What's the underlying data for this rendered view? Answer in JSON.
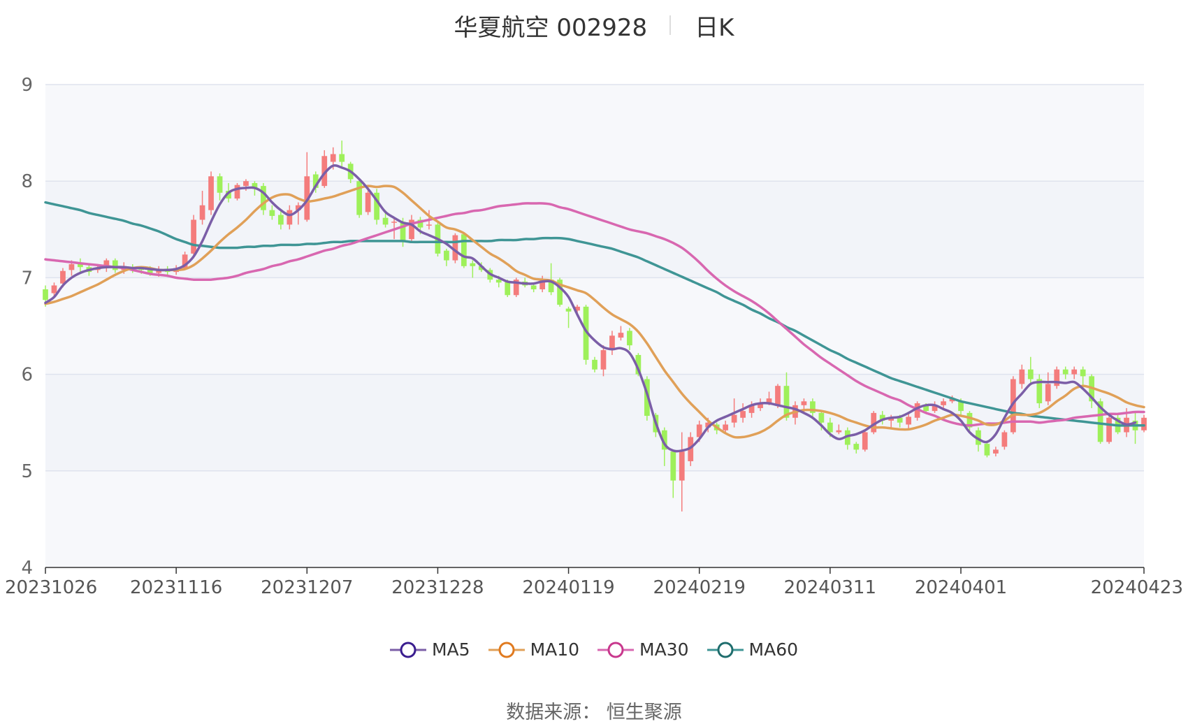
{
  "title": {
    "name": "华夏航空 002928",
    "period": "日K"
  },
  "source": {
    "label": "数据来源：",
    "value": "恒生聚源"
  },
  "colors": {
    "up": "#f47c7c",
    "down": "#9ef05a",
    "ma5": "#7b5ea7",
    "ma10": "#e0a058",
    "ma30": "#d867b0",
    "ma60": "#3f9595",
    "ma5_ring": "#3a1d8f",
    "ma10_ring": "#e07a1f",
    "ma30_ring": "#c8388d",
    "ma60_ring": "#1f6d6d",
    "band": "#f5f6fa",
    "grid": "#dfe3ee"
  },
  "chart_data": {
    "type": "candlestick",
    "title": "华夏航空 002928",
    "subtitle": "日K",
    "ylim": [
      4,
      9
    ],
    "yticks": [
      4,
      5,
      6,
      7,
      8,
      9
    ],
    "xticks": [
      "20231026",
      "20231116",
      "20231207",
      "20231228",
      "20240119",
      "20240219",
      "20240311",
      "20240401",
      "20240423"
    ],
    "legend": [
      "MA5",
      "MA10",
      "MA30",
      "MA60"
    ],
    "legend_position": "bottom-center",
    "candles": [
      [
        6.88,
        6.77,
        6.92,
        6.7
      ],
      [
        6.84,
        6.92,
        6.95,
        6.8
      ],
      [
        6.94,
        7.07,
        7.1,
        6.9
      ],
      [
        7.08,
        7.14,
        7.18,
        7.02
      ],
      [
        7.15,
        7.11,
        7.2,
        7.05
      ],
      [
        7.11,
        7.06,
        7.14,
        7.02
      ],
      [
        7.08,
        7.1,
        7.14,
        7.05
      ],
      [
        7.1,
        7.18,
        7.2,
        7.06
      ],
      [
        7.18,
        7.08,
        7.2,
        7.05
      ],
      [
        7.08,
        7.12,
        7.16,
        7.04
      ],
      [
        7.1,
        7.09,
        7.14,
        7.05
      ],
      [
        7.1,
        7.08,
        7.12,
        7.04
      ],
      [
        7.09,
        7.05,
        7.12,
        7.02
      ],
      [
        7.05,
        7.08,
        7.12,
        7.01
      ],
      [
        7.09,
        7.06,
        7.12,
        7.03
      ],
      [
        7.06,
        7.1,
        7.13,
        7.03
      ],
      [
        7.1,
        7.24,
        7.27,
        7.08
      ],
      [
        7.25,
        7.6,
        7.65,
        7.2
      ],
      [
        7.6,
        7.75,
        7.9,
        7.55
      ],
      [
        7.7,
        8.05,
        8.1,
        7.65
      ],
      [
        8.05,
        7.88,
        8.08,
        7.8
      ],
      [
        7.9,
        7.82,
        7.98,
        7.78
      ],
      [
        7.82,
        7.96,
        7.98,
        7.8
      ],
      [
        7.95,
        8.0,
        8.02,
        7.9
      ],
      [
        7.98,
        7.92,
        8.0,
        7.85
      ],
      [
        7.95,
        7.7,
        7.98,
        7.65
      ],
      [
        7.7,
        7.64,
        7.75,
        7.6
      ],
      [
        7.65,
        7.55,
        7.7,
        7.5
      ],
      [
        7.55,
        7.7,
        7.75,
        7.5
      ],
      [
        7.7,
        7.75,
        7.78,
        7.55
      ],
      [
        7.6,
        8.05,
        8.3,
        7.58
      ],
      [
        8.07,
        7.93,
        8.1,
        7.88
      ],
      [
        7.95,
        8.26,
        8.32,
        7.93
      ],
      [
        8.2,
        8.28,
        8.35,
        8.12
      ],
      [
        8.28,
        8.2,
        8.42,
        8.15
      ],
      [
        8.18,
        8.02,
        8.2,
        7.98
      ],
      [
        8.0,
        7.65,
        8.02,
        7.62
      ],
      [
        7.68,
        7.88,
        7.95,
        7.65
      ],
      [
        7.88,
        7.6,
        7.92,
        7.55
      ],
      [
        7.62,
        7.55,
        7.7,
        7.52
      ],
      [
        7.58,
        7.58,
        7.62,
        7.4
      ],
      [
        7.58,
        7.38,
        7.62,
        7.32
      ],
      [
        7.4,
        7.6,
        7.65,
        7.38
      ],
      [
        7.6,
        7.52,
        7.63,
        7.45
      ],
      [
        7.55,
        7.55,
        7.7,
        7.5
      ],
      [
        7.55,
        7.25,
        7.58,
        7.22
      ],
      [
        7.28,
        7.18,
        7.3,
        7.12
      ],
      [
        7.18,
        7.44,
        7.46,
        7.15
      ],
      [
        7.45,
        7.12,
        7.47,
        7.1
      ],
      [
        7.15,
        7.12,
        7.18,
        7.0
      ],
      [
        7.12,
        7.08,
        7.16,
        7.06
      ],
      [
        7.08,
        6.98,
        7.1,
        6.95
      ],
      [
        6.98,
        6.95,
        7.02,
        6.9
      ],
      [
        6.96,
        6.82,
        6.98,
        6.8
      ],
      [
        6.82,
        6.98,
        7.0,
        6.8
      ],
      [
        6.96,
        6.92,
        7.0,
        6.9
      ],
      [
        6.92,
        6.88,
        6.95,
        6.85
      ],
      [
        6.88,
        6.98,
        7.02,
        6.85
      ],
      [
        6.98,
        6.85,
        7.15,
        6.82
      ],
      [
        6.98,
        6.72,
        7.0,
        6.7
      ],
      [
        6.68,
        6.65,
        6.7,
        6.48
      ],
      [
        6.66,
        6.7,
        6.72,
        6.6
      ],
      [
        6.7,
        6.15,
        6.72,
        6.1
      ],
      [
        6.15,
        6.05,
        6.18,
        6.02
      ],
      [
        6.05,
        6.25,
        6.3,
        5.98
      ],
      [
        6.25,
        6.4,
        6.45,
        6.2
      ],
      [
        6.38,
        6.43,
        6.5,
        6.35
      ],
      [
        6.45,
        6.3,
        6.48,
        6.25
      ],
      [
        6.2,
        6.0,
        6.22,
        5.98
      ],
      [
        5.95,
        5.57,
        5.98,
        5.52
      ],
      [
        5.58,
        5.4,
        5.6,
        5.35
      ],
      [
        5.42,
        5.22,
        5.45,
        5.05
      ],
      [
        5.2,
        4.9,
        5.22,
        4.72
      ],
      [
        4.9,
        5.2,
        5.4,
        4.58
      ],
      [
        5.1,
        5.35,
        5.4,
        5.05
      ],
      [
        5.35,
        5.48,
        5.52,
        5.3
      ],
      [
        5.45,
        5.5,
        5.55,
        5.4
      ],
      [
        5.48,
        5.42,
        5.5,
        5.38
      ],
      [
        5.42,
        5.48,
        5.52,
        5.4
      ],
      [
        5.5,
        5.58,
        5.75,
        5.45
      ],
      [
        5.55,
        5.62,
        5.7,
        5.5
      ],
      [
        5.6,
        5.68,
        5.72,
        5.55
      ],
      [
        5.65,
        5.7,
        5.75,
        5.62
      ],
      [
        5.7,
        5.75,
        5.82,
        5.68
      ],
      [
        5.68,
        5.88,
        5.9,
        5.65
      ],
      [
        5.88,
        5.55,
        6.02,
        5.52
      ],
      [
        5.55,
        5.68,
        5.72,
        5.48
      ],
      [
        5.68,
        5.72,
        5.75,
        5.6
      ],
      [
        5.72,
        5.6,
        5.75,
        5.55
      ],
      [
        5.6,
        5.5,
        5.62,
        5.42
      ],
      [
        5.5,
        5.4,
        5.55,
        5.35
      ],
      [
        5.4,
        5.42,
        5.48,
        5.38
      ],
      [
        5.42,
        5.27,
        5.45,
        5.22
      ],
      [
        5.28,
        5.22,
        5.3,
        5.18
      ],
      [
        5.22,
        5.4,
        5.42,
        5.2
      ],
      [
        5.4,
        5.6,
        5.62,
        5.38
      ],
      [
        5.58,
        5.52,
        5.62,
        5.48
      ],
      [
        5.52,
        5.55,
        5.58,
        5.45
      ],
      [
        5.55,
        5.5,
        5.58,
        5.45
      ],
      [
        5.48,
        5.56,
        5.6,
        5.44
      ],
      [
        5.55,
        5.7,
        5.72,
        5.52
      ],
      [
        5.68,
        5.62,
        5.7,
        5.6
      ],
      [
        5.62,
        5.68,
        5.72,
        5.6
      ],
      [
        5.68,
        5.72,
        5.75,
        5.65
      ],
      [
        5.72,
        5.75,
        5.78,
        5.7
      ],
      [
        5.72,
        5.62,
        5.75,
        5.58
      ],
      [
        5.6,
        5.45,
        5.62,
        5.4
      ],
      [
        5.42,
        5.27,
        5.45,
        5.2
      ],
      [
        5.28,
        5.16,
        5.3,
        5.14
      ],
      [
        5.18,
        5.22,
        5.25,
        5.15
      ],
      [
        5.25,
        5.4,
        5.42,
        5.22
      ],
      [
        5.4,
        5.95,
        5.98,
        5.38
      ],
      [
        5.9,
        6.05,
        6.1,
        5.85
      ],
      [
        6.05,
        5.95,
        6.18,
        5.9
      ],
      [
        5.95,
        5.7,
        6.0,
        5.65
      ],
      [
        5.72,
        5.9,
        6.02,
        5.68
      ],
      [
        5.88,
        6.05,
        6.08,
        5.85
      ],
      [
        6.05,
        6.0,
        6.08,
        5.95
      ],
      [
        6.0,
        6.05,
        6.08,
        5.95
      ],
      [
        6.05,
        5.98,
        6.08,
        5.85
      ],
      [
        5.98,
        5.72,
        6.0,
        5.65
      ],
      [
        5.72,
        5.3,
        5.75,
        5.28
      ],
      [
        5.3,
        5.55,
        5.6,
        5.28
      ],
      [
        5.55,
        5.4,
        5.58,
        5.38
      ],
      [
        5.4,
        5.55,
        5.65,
        5.35
      ],
      [
        5.52,
        5.42,
        5.6,
        5.28
      ],
      [
        5.42,
        5.55,
        5.58,
        5.4
      ]
    ],
    "ma5": [
      6.74,
      6.8,
      6.92,
      7.0,
      7.05,
      7.08,
      7.1,
      7.11,
      7.11,
      7.11,
      7.1,
      7.1,
      7.09,
      7.08,
      7.08,
      7.09,
      7.13,
      7.22,
      7.38,
      7.58,
      7.76,
      7.88,
      7.92,
      7.93,
      7.93,
      7.88,
      7.78,
      7.7,
      7.65,
      7.7,
      7.8,
      7.95,
      8.08,
      8.16,
      8.14,
      8.1,
      8.02,
      7.92,
      7.8,
      7.68,
      7.62,
      7.57,
      7.55,
      7.48,
      7.44,
      7.4,
      7.35,
      7.28,
      7.22,
      7.2,
      7.12,
      7.04,
      7.0,
      6.96,
      6.95,
      6.94,
      6.94,
      6.96,
      6.96,
      6.9,
      6.8,
      6.62,
      6.45,
      6.35,
      6.28,
      6.26,
      6.27,
      6.22,
      6.05,
      5.8,
      5.5,
      5.28,
      5.21,
      5.21,
      5.24,
      5.33,
      5.45,
      5.52,
      5.56,
      5.6,
      5.64,
      5.68,
      5.7,
      5.7,
      5.68,
      5.66,
      5.64,
      5.6,
      5.55,
      5.47,
      5.38,
      5.33,
      5.36,
      5.38,
      5.42,
      5.48,
      5.53,
      5.55,
      5.56,
      5.6,
      5.65,
      5.68,
      5.68,
      5.64,
      5.6,
      5.52,
      5.4,
      5.33,
      5.3,
      5.38,
      5.55,
      5.7,
      5.8,
      5.9,
      5.92,
      5.92,
      5.92,
      5.91,
      5.92,
      5.85,
      5.76,
      5.66,
      5.58,
      5.52,
      5.48,
      5.5
    ],
    "ma10": [
      6.73,
      6.75,
      6.78,
      6.81,
      6.85,
      6.89,
      6.93,
      6.98,
      7.03,
      7.07,
      7.1,
      7.11,
      7.1,
      7.08,
      7.08,
      7.08,
      7.09,
      7.13,
      7.2,
      7.28,
      7.37,
      7.45,
      7.52,
      7.6,
      7.69,
      7.77,
      7.83,
      7.86,
      7.86,
      7.82,
      7.79,
      7.8,
      7.82,
      7.84,
      7.87,
      7.9,
      7.93,
      7.95,
      7.94,
      7.95,
      7.94,
      7.88,
      7.8,
      7.72,
      7.64,
      7.58,
      7.52,
      7.5,
      7.46,
      7.39,
      7.32,
      7.25,
      7.2,
      7.14,
      7.07,
      7.03,
      6.99,
      6.98,
      6.97,
      6.93,
      6.9,
      6.87,
      6.84,
      6.77,
      6.69,
      6.62,
      6.57,
      6.52,
      6.44,
      6.32,
      6.18,
      6.04,
      5.92,
      5.8,
      5.7,
      5.61,
      5.52,
      5.45,
      5.39,
      5.35,
      5.35,
      5.37,
      5.4,
      5.45,
      5.52,
      5.58,
      5.61,
      5.63,
      5.63,
      5.62,
      5.6,
      5.57,
      5.53,
      5.5,
      5.47,
      5.45,
      5.45,
      5.44,
      5.43,
      5.43,
      5.45,
      5.48,
      5.52,
      5.55,
      5.58,
      5.57,
      5.55,
      5.52,
      5.48,
      5.48,
      5.52,
      5.58,
      5.58,
      5.58,
      5.6,
      5.65,
      5.72,
      5.78,
      5.85,
      5.88,
      5.86,
      5.83,
      5.8,
      5.76,
      5.71,
      5.68,
      5.66
    ],
    "ma30": [
      7.19,
      7.18,
      7.17,
      7.16,
      7.15,
      7.14,
      7.13,
      7.12,
      7.11,
      7.1,
      7.08,
      7.06,
      7.04,
      7.03,
      7.02,
      7.0,
      6.99,
      6.98,
      6.98,
      6.98,
      6.99,
      7.0,
      7.02,
      7.05,
      7.07,
      7.09,
      7.12,
      7.14,
      7.17,
      7.19,
      7.22,
      7.25,
      7.28,
      7.3,
      7.33,
      7.35,
      7.38,
      7.41,
      7.44,
      7.47,
      7.5,
      7.53,
      7.56,
      7.58,
      7.6,
      7.62,
      7.64,
      7.66,
      7.67,
      7.69,
      7.7,
      7.72,
      7.74,
      7.75,
      7.76,
      7.77,
      7.77,
      7.77,
      7.76,
      7.73,
      7.71,
      7.68,
      7.65,
      7.62,
      7.59,
      7.56,
      7.53,
      7.5,
      7.48,
      7.46,
      7.43,
      7.4,
      7.36,
      7.31,
      7.24,
      7.16,
      7.07,
      6.99,
      6.92,
      6.86,
      6.81,
      6.76,
      6.7,
      6.63,
      6.55,
      6.47,
      6.39,
      6.31,
      6.24,
      6.17,
      6.11,
      6.05,
      5.99,
      5.93,
      5.88,
      5.84,
      5.8,
      5.76,
      5.73,
      5.68,
      5.64,
      5.6,
      5.57,
      5.53,
      5.5,
      5.48,
      5.47,
      5.48,
      5.49,
      5.49,
      5.5,
      5.51,
      5.51,
      5.51,
      5.5,
      5.51,
      5.52,
      5.53,
      5.55,
      5.56,
      5.57,
      5.58,
      5.59,
      5.59,
      5.6,
      5.61,
      5.61
    ],
    "ma60": [
      7.78,
      7.76,
      7.74,
      7.72,
      7.7,
      7.67,
      7.65,
      7.63,
      7.61,
      7.59,
      7.56,
      7.54,
      7.51,
      7.48,
      7.44,
      7.4,
      7.37,
      7.34,
      7.33,
      7.32,
      7.31,
      7.31,
      7.31,
      7.32,
      7.32,
      7.33,
      7.33,
      7.34,
      7.34,
      7.34,
      7.35,
      7.35,
      7.36,
      7.37,
      7.37,
      7.38,
      7.38,
      7.38,
      7.38,
      7.38,
      7.38,
      7.38,
      7.37,
      7.37,
      7.37,
      7.37,
      7.37,
      7.37,
      7.38,
      7.38,
      7.38,
      7.38,
      7.39,
      7.39,
      7.39,
      7.4,
      7.4,
      7.41,
      7.41,
      7.41,
      7.4,
      7.38,
      7.36,
      7.34,
      7.32,
      7.3,
      7.27,
      7.24,
      7.21,
      7.17,
      7.13,
      7.09,
      7.05,
      7.01,
      6.97,
      6.93,
      6.89,
      6.85,
      6.8,
      6.76,
      6.72,
      6.67,
      6.63,
      6.58,
      6.54,
      6.49,
      6.45,
      6.4,
      6.35,
      6.3,
      6.25,
      6.21,
      6.16,
      6.12,
      6.08,
      6.04,
      6.0,
      5.96,
      5.93,
      5.9,
      5.87,
      5.84,
      5.81,
      5.78,
      5.75,
      5.72,
      5.7,
      5.68,
      5.66,
      5.64,
      5.62,
      5.6,
      5.59,
      5.57,
      5.56,
      5.55,
      5.54,
      5.53,
      5.52,
      5.51,
      5.5,
      5.49,
      5.48,
      5.47,
      5.47,
      5.47,
      5.47
    ]
  }
}
